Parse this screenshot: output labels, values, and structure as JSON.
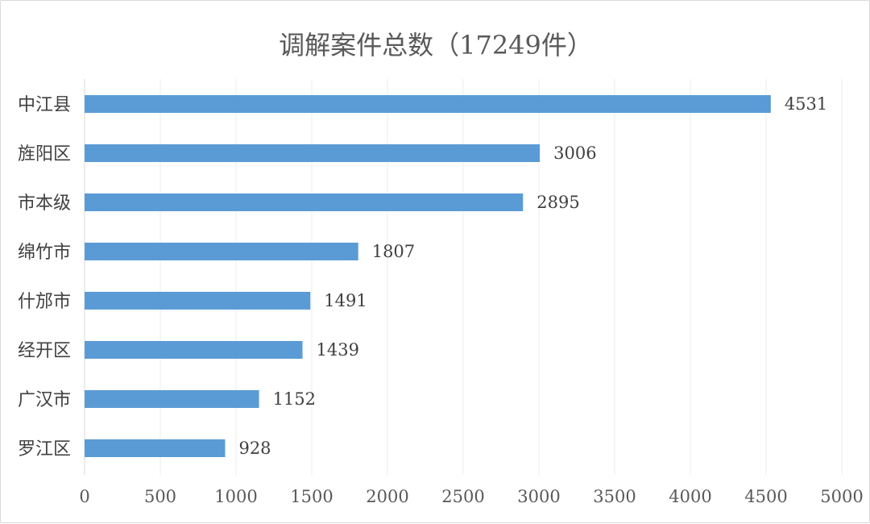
{
  "chart_data": {
    "type": "bar",
    "orientation": "horizontal",
    "title": "调解案件总数（17249件）",
    "xlabel": "",
    "ylabel": "",
    "categories": [
      "中江县",
      "旌阳区",
      "市本级",
      "绵竹市",
      "什邡市",
      "经开区",
      "广汉市",
      "罗江区"
    ],
    "values": [
      4531,
      3006,
      2895,
      1807,
      1491,
      1439,
      1152,
      928
    ],
    "xlim": [
      0,
      5000
    ],
    "x_ticks": [
      0,
      500,
      1000,
      1500,
      2000,
      2500,
      3000,
      3500,
      4000,
      4500,
      5000
    ],
    "grid": "vertical",
    "legend": "none",
    "data_labels": true,
    "bar_color": "#5b9bd5"
  }
}
